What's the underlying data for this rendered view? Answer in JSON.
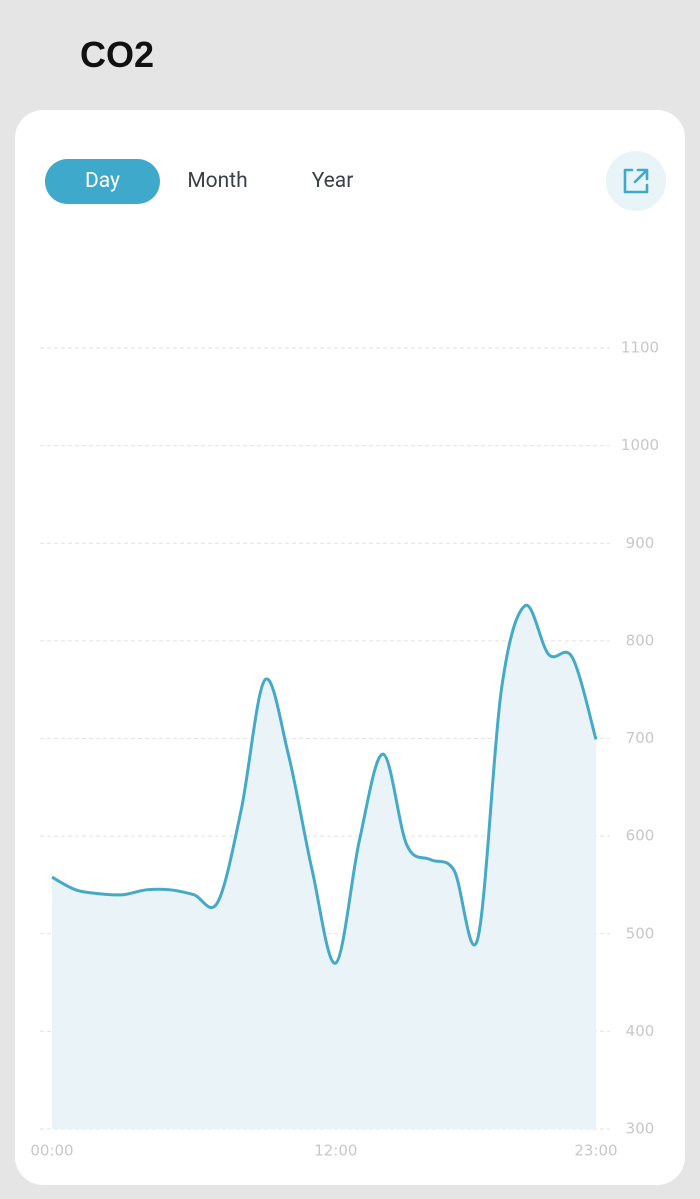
{
  "header": {
    "title": "CO2"
  },
  "tabs": [
    "Day",
    "Month",
    "Year"
  ],
  "chart_data": {
    "type": "line",
    "categories": [
      "00:00",
      null,
      null,
      null,
      null,
      null,
      null,
      null,
      null,
      null,
      null,
      null,
      "12:00",
      null,
      null,
      null,
      null,
      null,
      null,
      null,
      null,
      null,
      null,
      "23:00"
    ],
    "values": [
      558,
      545,
      541,
      540,
      545,
      545,
      540,
      532,
      627,
      760,
      683,
      565,
      470,
      596,
      684,
      591,
      576,
      565,
      495,
      750,
      836,
      786,
      783,
      699
    ],
    "color": "#45a9c8",
    "fill_color": "#eaf4f8",
    "ylim": [
      300,
      1100
    ],
    "yticks": [
      300,
      400,
      500,
      600,
      700,
      800,
      900,
      1000,
      1100
    ],
    "grid": true
  }
}
